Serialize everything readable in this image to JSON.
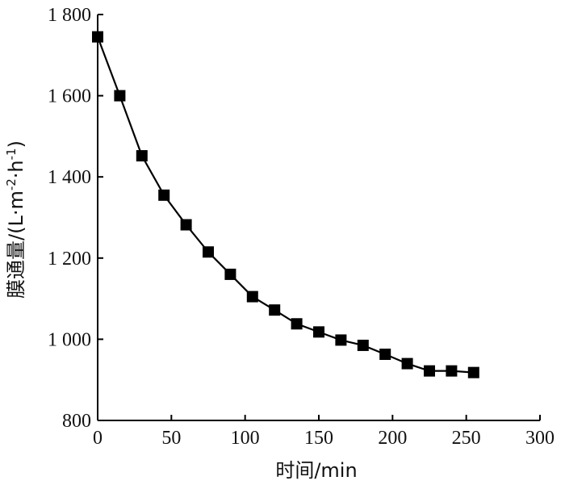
{
  "chart_data": {
    "type": "line",
    "title": "",
    "xlabel": "时间/min",
    "ylabel": "膜通量/(L·m-2·h-1)",
    "ylabel_parts": {
      "base": "膜通量/(L·m",
      "sup1": "-2",
      "mid": "·h",
      "sup2": "-1",
      "end": ")"
    },
    "xlim": [
      0,
      300
    ],
    "ylim": [
      800,
      1800
    ],
    "x_ticks": [
      0,
      50,
      100,
      150,
      200,
      250,
      300
    ],
    "x_tick_labels": [
      "0",
      "50",
      "100",
      "150",
      "200",
      "250",
      "300"
    ],
    "y_ticks": [
      800,
      1000,
      1200,
      1400,
      1600,
      1800
    ],
    "y_tick_labels": [
      "800",
      "1 000",
      "1 200",
      "1 400",
      "1 600",
      "1 800"
    ],
    "grid": false,
    "marker": "square",
    "color": "#000000",
    "series": [
      {
        "x": [
          0,
          15,
          30,
          45,
          60,
          75,
          90,
          105,
          120,
          135,
          150,
          165,
          180,
          195,
          210,
          225,
          240,
          255
        ],
        "y": [
          1745,
          1600,
          1452,
          1355,
          1282,
          1215,
          1160,
          1105,
          1072,
          1038,
          1018,
          998,
          985,
          963,
          940,
          922,
          922,
          918
        ]
      }
    ]
  }
}
